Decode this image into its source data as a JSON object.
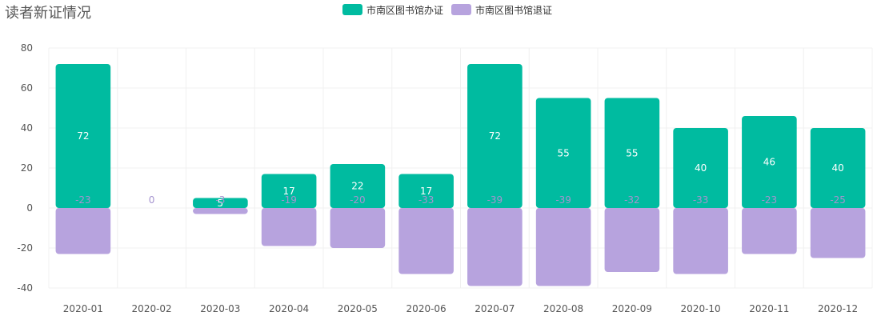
{
  "title": "读者新证情况",
  "chart_data": {
    "type": "bar",
    "stacked": true,
    "categories": [
      "2020-01",
      "2020-02",
      "2020-03",
      "2020-04",
      "2020-05",
      "2020-06",
      "2020-07",
      "2020-08",
      "2020-09",
      "2020-10",
      "2020-11",
      "2020-12"
    ],
    "series": [
      {
        "name": "市南区图书馆办证",
        "color": "#00bba0",
        "values": [
          72,
          0,
          5,
          17,
          22,
          17,
          72,
          55,
          55,
          40,
          46,
          40
        ],
        "labels": [
          "72",
          "",
          "5",
          "17",
          "22",
          "17",
          "72",
          "55",
          "55",
          "40",
          "46",
          "40"
        ]
      },
      {
        "name": "市南区图书馆退证",
        "color": "#b7a3de",
        "values": [
          -23,
          0,
          -3,
          -19,
          -20,
          -33,
          -39,
          -39,
          -32,
          -33,
          -23,
          -25
        ],
        "labels": [
          "-23",
          "0",
          "-3",
          "-19",
          "-20",
          "-33",
          "-39",
          "-39",
          "-32",
          "-33",
          "-23",
          "-25"
        ]
      }
    ],
    "ylim": [
      -40,
      80
    ],
    "yticks": [
      "80",
      "60",
      "40",
      "20",
      "0",
      "-20",
      "-40"
    ],
    "legend_position": "top-center",
    "grid": true
  }
}
